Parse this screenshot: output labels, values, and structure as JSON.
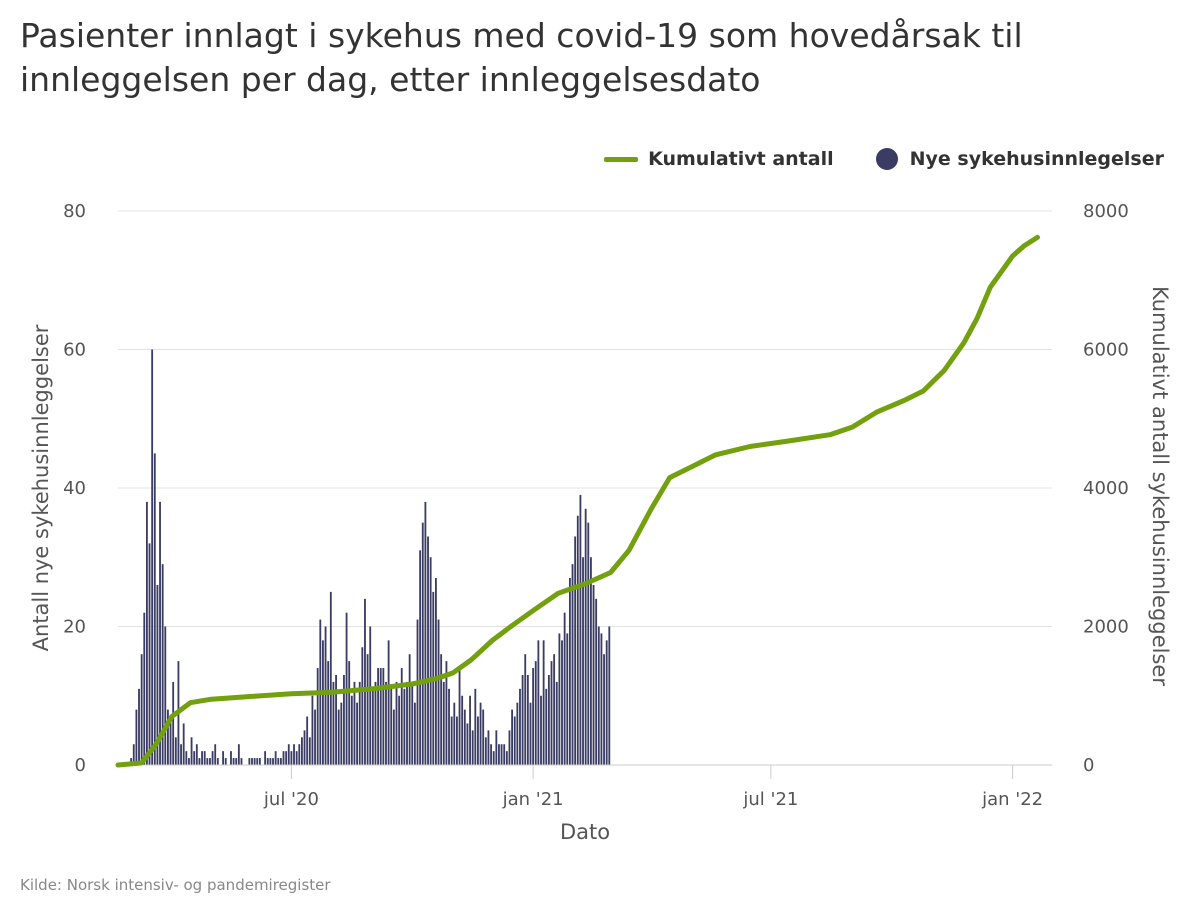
{
  "title": "Pasienter innlagt i sykehus med covid-19 som hovedårsak til innleggelsen per dag, etter innleggelsesdato",
  "source": "Kilde: Norsk intensiv- og pandemiregister",
  "colors": {
    "bars": "#3a3c63",
    "line": "#72a00e",
    "grid": "#e3e3e3"
  },
  "legend": {
    "line_label": "Kumulativt antall",
    "bars_label": "Nye sykehusinnlegelser"
  },
  "chart_data": {
    "type": "bar+line",
    "x_label": "Dato",
    "x_range": [
      "2020-02-20",
      "2022-01-31"
    ],
    "x_ticks": [
      {
        "date": "2020-07-01",
        "label": "jul '20"
      },
      {
        "date": "2021-01-01",
        "label": "jan '21"
      },
      {
        "date": "2021-07-01",
        "label": "jul '21"
      },
      {
        "date": "2022-01-01",
        "label": "jan '22"
      }
    ],
    "y_left": {
      "label": "Antall nye sykehusinnleggelser",
      "range": [
        0,
        80
      ],
      "ticks": [
        0,
        20,
        40,
        60,
        80
      ]
    },
    "y_right": {
      "label": "Kumulativt antall sykehusinnleggelser",
      "range": [
        0,
        8000
      ],
      "ticks": [
        0,
        2000,
        4000,
        6000,
        8000
      ]
    },
    "bars_series": {
      "name": "Nye sykehusinnlegelser",
      "start_date": "2020-03-01",
      "step_days": 2,
      "values": [
        1,
        3,
        8,
        11,
        16,
        22,
        38,
        32,
        60,
        45,
        26,
        38,
        29,
        20,
        8,
        7,
        12,
        4,
        15,
        3,
        6,
        2,
        1,
        4,
        2,
        3,
        1,
        2,
        2,
        1,
        1,
        2,
        3,
        1,
        0,
        2,
        1,
        0,
        2,
        1,
        1,
        3,
        1,
        0,
        0,
        1,
        1,
        1,
        1,
        1,
        0,
        2,
        1,
        1,
        1,
        2,
        1,
        1,
        2,
        2,
        3,
        2,
        3,
        2,
        3,
        4,
        5,
        7,
        4,
        10,
        8,
        14,
        21,
        18,
        20,
        15,
        25,
        12,
        13,
        8,
        9,
        13,
        22,
        15,
        10,
        12,
        9,
        12,
        17,
        24,
        16,
        20,
        11,
        12,
        14,
        14,
        14,
        12,
        18,
        11,
        8,
        12,
        10,
        14,
        11,
        12,
        16,
        12,
        9,
        21,
        31,
        35,
        38,
        33,
        30,
        25,
        27,
        21,
        16,
        12,
        15,
        11,
        7,
        9,
        7,
        14,
        10,
        8,
        6,
        10,
        5,
        11,
        7,
        9,
        8,
        4,
        5,
        3,
        2,
        5,
        3,
        3,
        3,
        2,
        5,
        8,
        7,
        9,
        11,
        13,
        16,
        13,
        9,
        14,
        15,
        18,
        10,
        18,
        11,
        13,
        15,
        16,
        12,
        19,
        18,
        22,
        19,
        27,
        29,
        33,
        36,
        39,
        30,
        37,
        35,
        30,
        26,
        24,
        20,
        19,
        16,
        18,
        20
      ]
    },
    "line_series": {
      "name": "Kumulativt antall",
      "points": [
        [
          "2020-02-20",
          0
        ],
        [
          "2020-03-09",
          30
        ],
        [
          "2020-03-20",
          300
        ],
        [
          "2020-04-01",
          700
        ],
        [
          "2020-04-15",
          900
        ],
        [
          "2020-05-01",
          950
        ],
        [
          "2020-06-01",
          990
        ],
        [
          "2020-07-01",
          1030
        ],
        [
          "2020-08-01",
          1050
        ],
        [
          "2020-09-01",
          1100
        ],
        [
          "2020-10-01",
          1170
        ],
        [
          "2020-10-20",
          1250
        ],
        [
          "2020-11-01",
          1330
        ],
        [
          "2020-11-15",
          1520
        ],
        [
          "2020-12-01",
          1800
        ],
        [
          "2020-12-15",
          2000
        ],
        [
          "2021-01-01",
          2230
        ],
        [
          "2021-01-20",
          2480
        ],
        [
          "2021-02-10",
          2620
        ],
        [
          "2021-03-01",
          2780
        ],
        [
          "2021-03-15",
          3100
        ],
        [
          "2021-04-01",
          3700
        ],
        [
          "2021-04-15",
          4150
        ],
        [
          "2021-05-01",
          4300
        ],
        [
          "2021-05-20",
          4480
        ],
        [
          "2021-06-15",
          4600
        ],
        [
          "2021-07-15",
          4680
        ],
        [
          "2021-08-15",
          4770
        ],
        [
          "2021-09-01",
          4880
        ],
        [
          "2021-09-20",
          5100
        ],
        [
          "2021-10-10",
          5260
        ],
        [
          "2021-10-25",
          5400
        ],
        [
          "2021-11-10",
          5700
        ],
        [
          "2021-11-25",
          6100
        ],
        [
          "2021-12-05",
          6450
        ],
        [
          "2021-12-15",
          6900
        ],
        [
          "2022-01-01",
          7350
        ],
        [
          "2022-01-10",
          7500
        ],
        [
          "2022-01-20",
          7620
        ]
      ]
    },
    "legend_position": "top-right",
    "grid": true
  }
}
